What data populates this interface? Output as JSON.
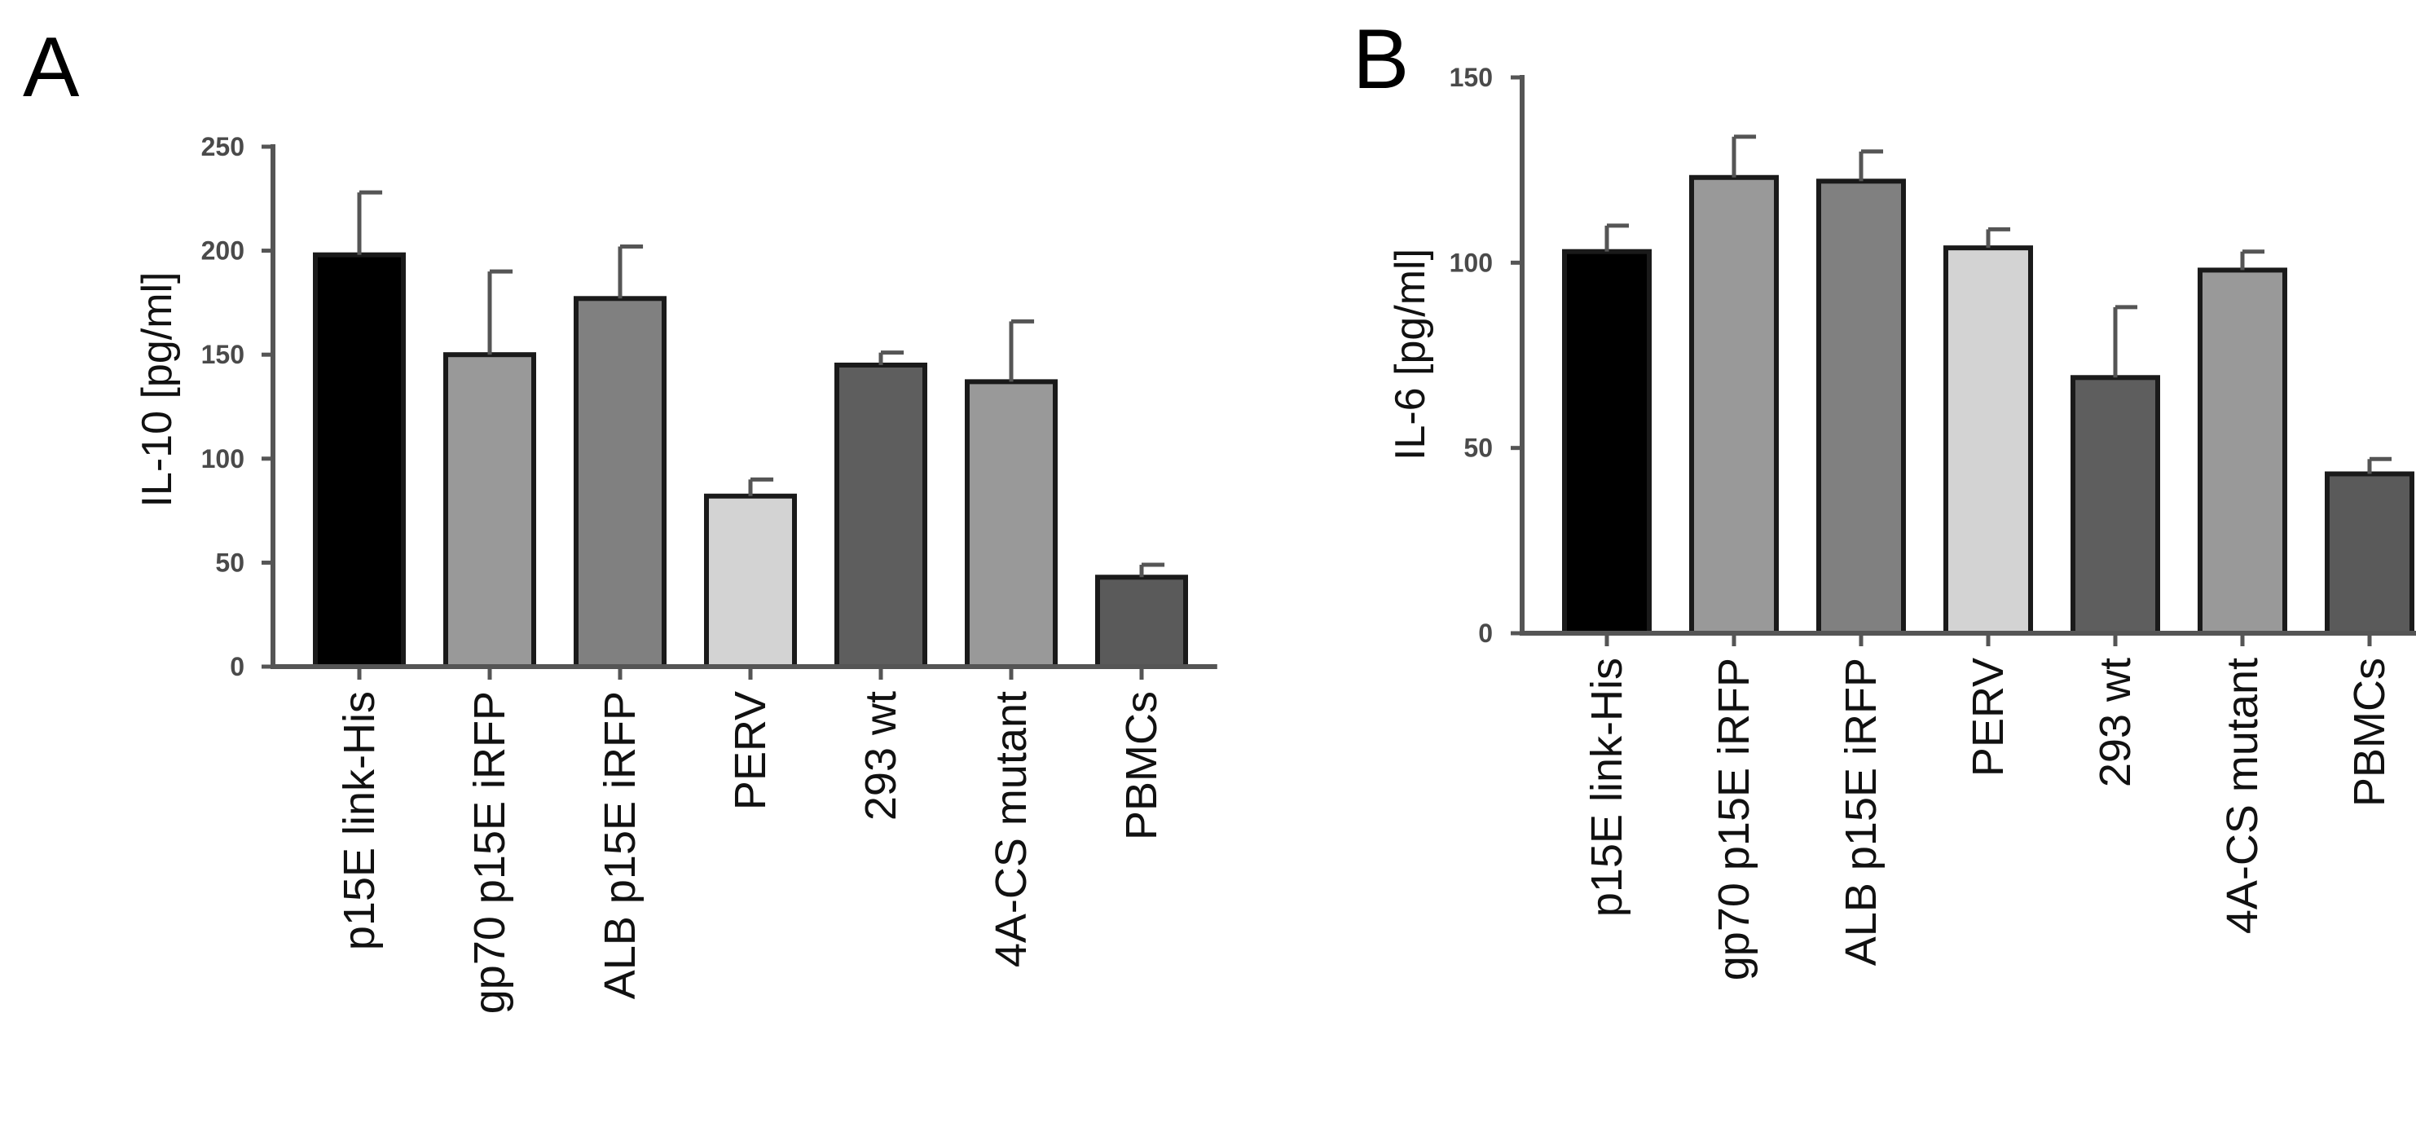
{
  "chart_data": [
    {
      "type": "bar",
      "panel_label": "A",
      "ylabel": "IL-10 [pg/ml]",
      "ylim": [
        0,
        250
      ],
      "yticks": [
        0,
        50,
        100,
        150,
        200,
        250
      ],
      "grid": false,
      "categories": [
        "p15E link-His",
        "gp70 p15E iRFP",
        "ALB p15E iRFP",
        "PERV",
        "293 wt",
        "4A-CS mutant",
        "PBMCs"
      ],
      "values": [
        198,
        150,
        177,
        82,
        145,
        137,
        43
      ],
      "errors": [
        30,
        40,
        25,
        8,
        6,
        29,
        6
      ],
      "colors": [
        "#000000",
        "#999999",
        "#808080",
        "#d3d3d3",
        "#5e5e5e",
        "#999999",
        "#5a5a5a"
      ]
    },
    {
      "type": "bar",
      "panel_label": "B",
      "ylabel": "IL-6 [pg/ml]",
      "ylim": [
        0,
        150
      ],
      "yticks": [
        0,
        50,
        100,
        150
      ],
      "grid": false,
      "categories": [
        "p15E link-His",
        "gp70 p15E iRFP",
        "ALB p15E iRFP",
        "PERV",
        "293 wt",
        "4A-CS mutant",
        "PBMCs"
      ],
      "values": [
        103,
        123,
        122,
        104,
        69,
        98,
        43
      ],
      "errors": [
        7,
        11,
        8,
        5,
        19,
        5,
        4
      ],
      "colors": [
        "#000000",
        "#999999",
        "#808080",
        "#d3d3d3",
        "#5e5e5e",
        "#999999",
        "#5a5a5a"
      ]
    }
  ]
}
